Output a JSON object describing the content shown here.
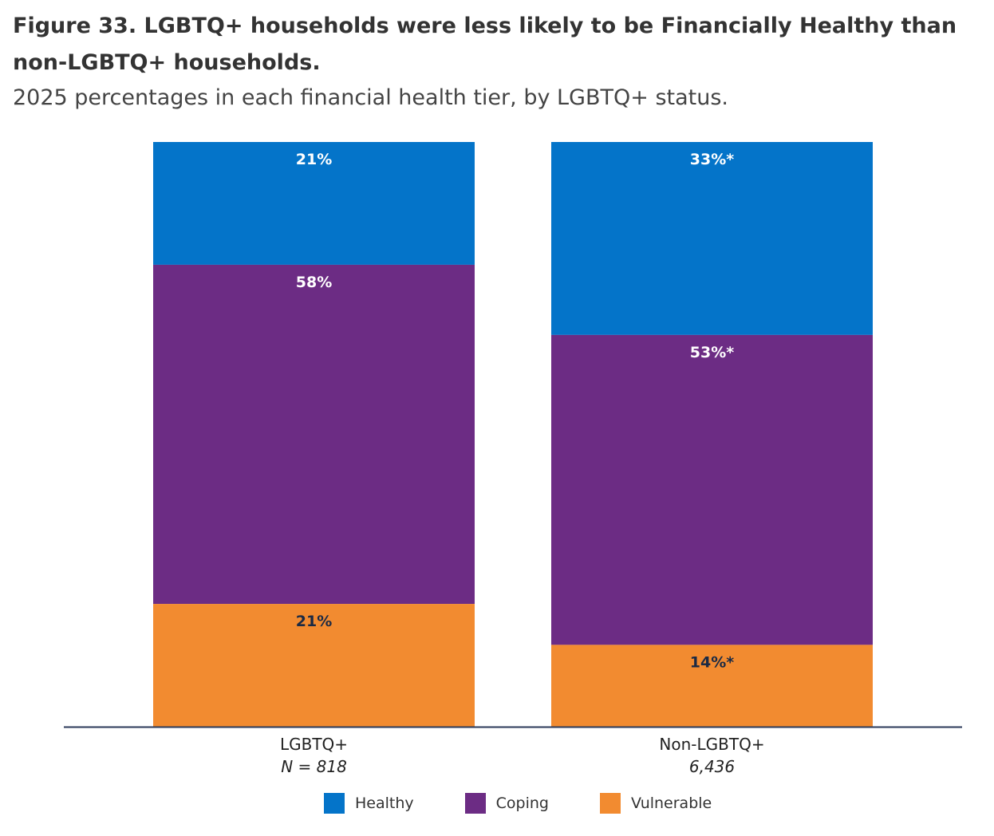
{
  "title": "Figure 33. LGBTQ+ households were less likely to be Financially Healthy than non-LGBTQ+ households.",
  "subtitle": "2025 percentages in each financial health tier, by LGBTQ+ status.",
  "colors": {
    "healthy": "#0474c9",
    "coping": "#6c2c84",
    "vulnerable": "#f28b30",
    "axis": "#2b3a5a",
    "label_light": "#ffffff",
    "label_dark": "#1b2a44"
  },
  "legend": [
    {
      "key": "healthy",
      "label": "Healthy"
    },
    {
      "key": "coping",
      "label": "Coping"
    },
    {
      "key": "vulnerable",
      "label": "Vulnerable"
    }
  ],
  "chart_data": {
    "type": "bar",
    "stacked": true,
    "orientation": "vertical",
    "ylim": [
      0,
      100
    ],
    "categories": [
      "LGBTQ+",
      "Non-LGBTQ+"
    ],
    "category_n": [
      "N = 818",
      "6,436"
    ],
    "series": [
      {
        "name": "Healthy",
        "key": "healthy",
        "values": [
          21,
          33
        ],
        "labels": [
          "21%",
          "33%*"
        ]
      },
      {
        "name": "Coping",
        "key": "coping",
        "values": [
          58,
          53
        ],
        "labels": [
          "58%",
          "53%*"
        ]
      },
      {
        "name": "Vulnerable",
        "key": "vulnerable",
        "values": [
          21,
          14
        ],
        "labels": [
          "21%",
          "14%*"
        ]
      }
    ]
  }
}
